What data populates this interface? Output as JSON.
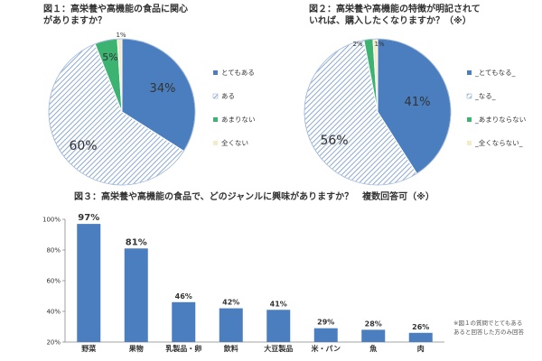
{
  "chart_data": [
    {
      "type": "pie",
      "title_lines": [
        "図１：高栄養や高機能の食品に関心",
        "がありますか？"
      ],
      "slices": [
        {
          "label": "とてもある",
          "value": 34,
          "value_label": "34%",
          "color": "#4a7ebf",
          "pattern": "solid"
        },
        {
          "label": "ある",
          "value": 60,
          "value_label": "60%",
          "color": "#4a7ebf",
          "pattern": "hatch"
        },
        {
          "label": "あまりない",
          "value": 5,
          "value_label": "5%",
          "color": "#3cb371",
          "pattern": "solid"
        },
        {
          "label": "全くない",
          "value": 1,
          "value_label": "1%",
          "color": "#f4ecc8",
          "pattern": "solid"
        }
      ],
      "legend_position": "right"
    },
    {
      "type": "pie",
      "title_lines": [
        "図２：高栄養や高機能の特徴が明記されて",
        "いれば、購入したくなりますか？（※）"
      ],
      "slices": [
        {
          "label": "_とてもなる_",
          "value": 41,
          "value_label": "41%",
          "color": "#4a7ebf",
          "pattern": "solid"
        },
        {
          "label": "_なる_",
          "value": 56,
          "value_label": "56%",
          "color": "#4a7ebf",
          "pattern": "hatch"
        },
        {
          "label": "_あまりならない",
          "value": 2,
          "value_label": "2%",
          "color": "#3cb371",
          "pattern": "solid"
        },
        {
          "label": "_全くならない_",
          "value": 1,
          "value_label": "1%",
          "color": "#f4ecc8",
          "pattern": "solid"
        }
      ],
      "legend_position": "right"
    },
    {
      "type": "bar",
      "title": "図３：高栄養や高機能の食品で、どのジャンルに興味がありますか？　複数回答可（※）",
      "categories": [
        "野菜",
        "果物",
        "乳製品・卵",
        "飲料",
        "大豆製品",
        "米・パン",
        "魚",
        "肉"
      ],
      "values": [
        97,
        81,
        46,
        42,
        41,
        29,
        28,
        26
      ],
      "value_labels": [
        "97%",
        "81%",
        "46%",
        "42%",
        "41%",
        "29%",
        "28%",
        "26%"
      ],
      "ylim": [
        20,
        100
      ],
      "yticks": [
        20,
        40,
        60,
        80,
        100
      ],
      "ytick_labels": [
        "20%",
        "40%",
        "60%",
        "80%",
        "100%"
      ],
      "color": "#4a7ebf",
      "grid": false
    }
  ],
  "note_lines": [
    "※図１の質問でとてもある",
    "あると回答した方のみ回答"
  ]
}
